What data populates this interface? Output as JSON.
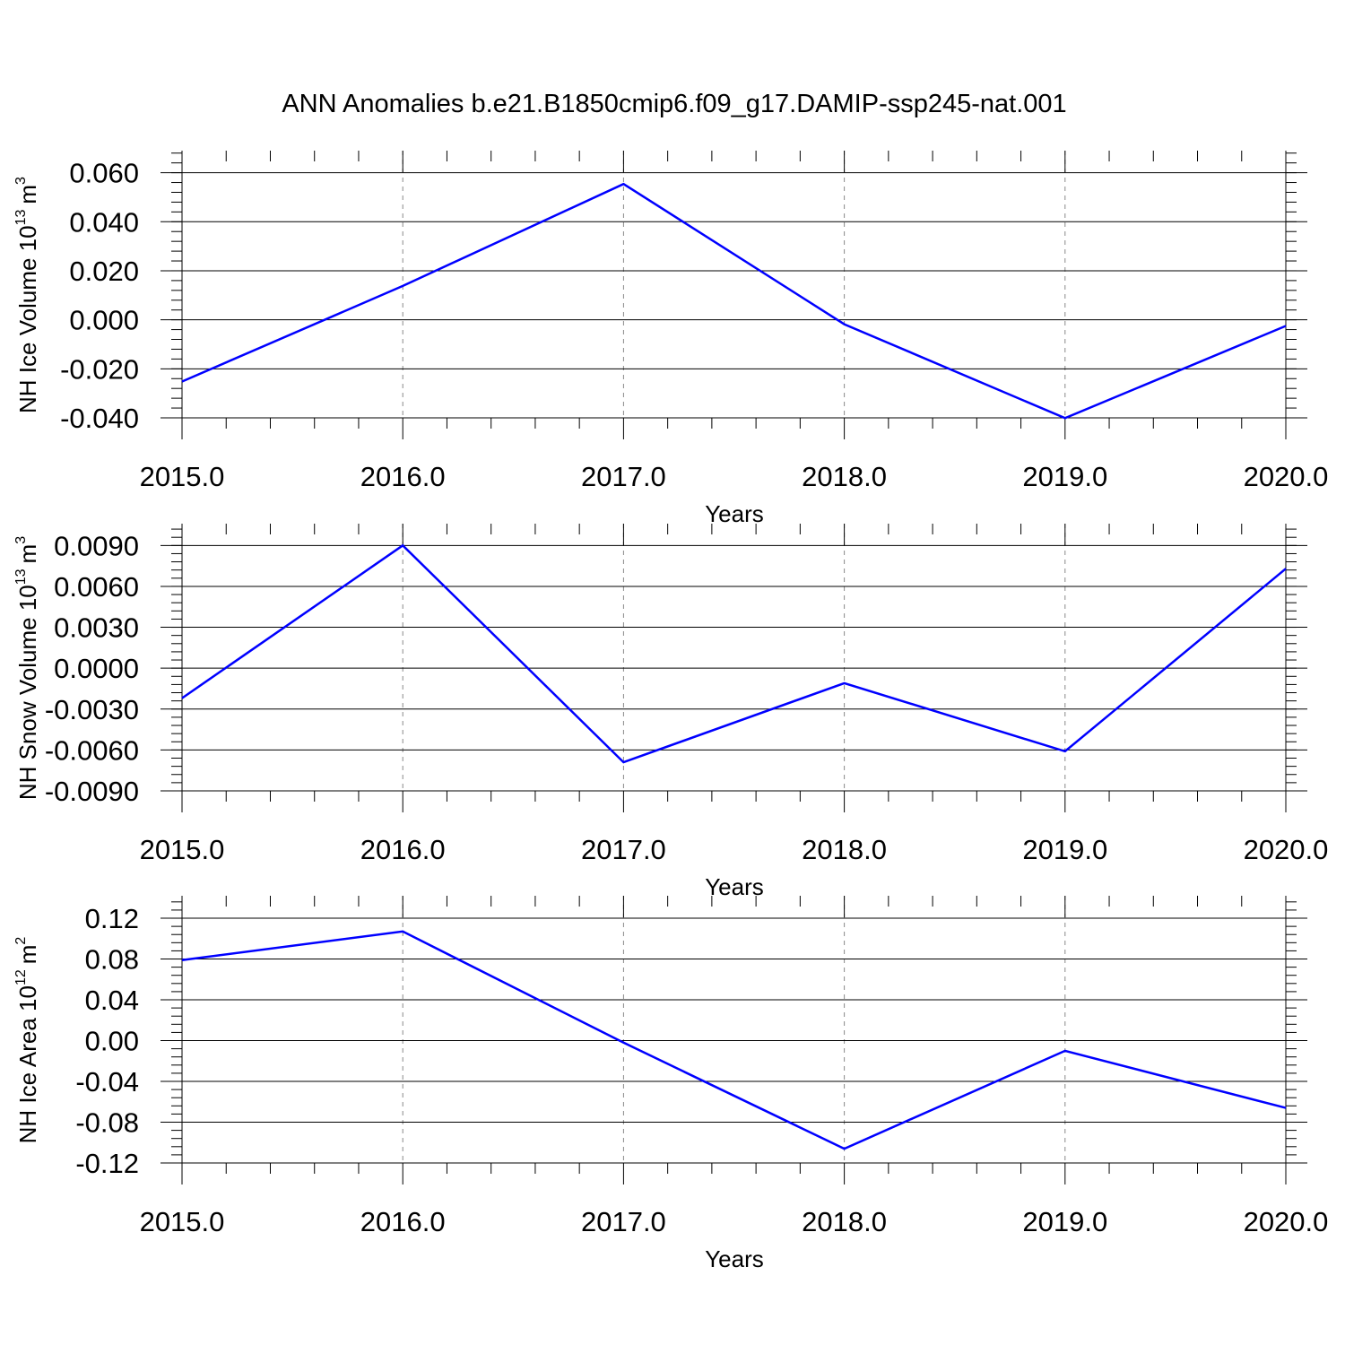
{
  "title": "ANN Anomalies b.e21.B1850cmip6.f09_g17.DAMIP-ssp245-nat.001",
  "chart_data": [
    {
      "type": "line",
      "ylabel_main": "NH Ice Volume 10",
      "ylabel_exp": "13",
      "ylabel_unit": "m",
      "ylabel_unit_exp": "3",
      "xlabel": "Years",
      "x": [
        2015,
        2016,
        2017,
        2018,
        2019,
        2020
      ],
      "x_tick_labels": [
        "2015.0",
        "2016.0",
        "2017.0",
        "2018.0",
        "2019.0",
        "2020.0"
      ],
      "y_tick_values": [
        0.06,
        0.04,
        0.02,
        0.0,
        -0.02,
        -0.04
      ],
      "y_tick_labels": [
        "0.060",
        "0.040",
        "0.020",
        "0.000",
        "-0.020",
        "-0.040"
      ],
      "ylim": [
        -0.04,
        0.069
      ],
      "series": [
        {
          "values": [
            -0.0252,
            0.0138,
            0.0554,
            -0.0018,
            -0.0401,
            -0.0025
          ]
        }
      ],
      "line_color": "#0000ff",
      "grid": "vertical dashed at major x ticks"
    },
    {
      "type": "line",
      "ylabel_main": "NH Snow Volume 10",
      "ylabel_exp": "13",
      "ylabel_unit": "m",
      "ylabel_unit_exp": "3",
      "xlabel": "Years",
      "x": [
        2015,
        2016,
        2017,
        2018,
        2019,
        2020
      ],
      "x_tick_labels": [
        "2015.0",
        "2016.0",
        "2017.0",
        "2018.0",
        "2019.0",
        "2020.0"
      ],
      "y_tick_values": [
        0.009,
        0.006,
        0.003,
        0.0,
        -0.003,
        -0.006,
        -0.009
      ],
      "y_tick_labels": [
        "0.0090",
        "0.0060",
        "0.0030",
        "0.0000",
        "-0.0030",
        "-0.0060",
        "-0.0090"
      ],
      "ylim": [
        -0.009,
        0.0106
      ],
      "series": [
        {
          "values": [
            -0.0022,
            0.009,
            -0.0069,
            -0.0011,
            -0.0061,
            0.0073
          ]
        }
      ],
      "line_color": "#0000ff",
      "grid": "vertical dashed at major x ticks"
    },
    {
      "type": "line",
      "ylabel_main": "NH Ice Area 10",
      "ylabel_exp": "12",
      "ylabel_unit": "m",
      "ylabel_unit_exp": "2",
      "xlabel": "Years",
      "x": [
        2015,
        2016,
        2017,
        2018,
        2019,
        2020
      ],
      "x_tick_labels": [
        "2015.0",
        "2016.0",
        "2017.0",
        "2018.0",
        "2019.0",
        "2020.0"
      ],
      "y_tick_values": [
        0.12,
        0.08,
        0.04,
        0.0,
        -0.04,
        -0.08,
        -0.12
      ],
      "y_tick_labels": [
        "0.12",
        "0.08",
        "0.04",
        "0.00",
        "-0.04",
        "-0.08",
        "-0.12"
      ],
      "ylim": [
        -0.12,
        0.142
      ],
      "series": [
        {
          "values": [
            0.079,
            0.107,
            -0.002,
            -0.106,
            -0.01,
            -0.066
          ]
        }
      ],
      "line_color": "#0000ff",
      "grid": "vertical dashed at major x ticks"
    }
  ]
}
